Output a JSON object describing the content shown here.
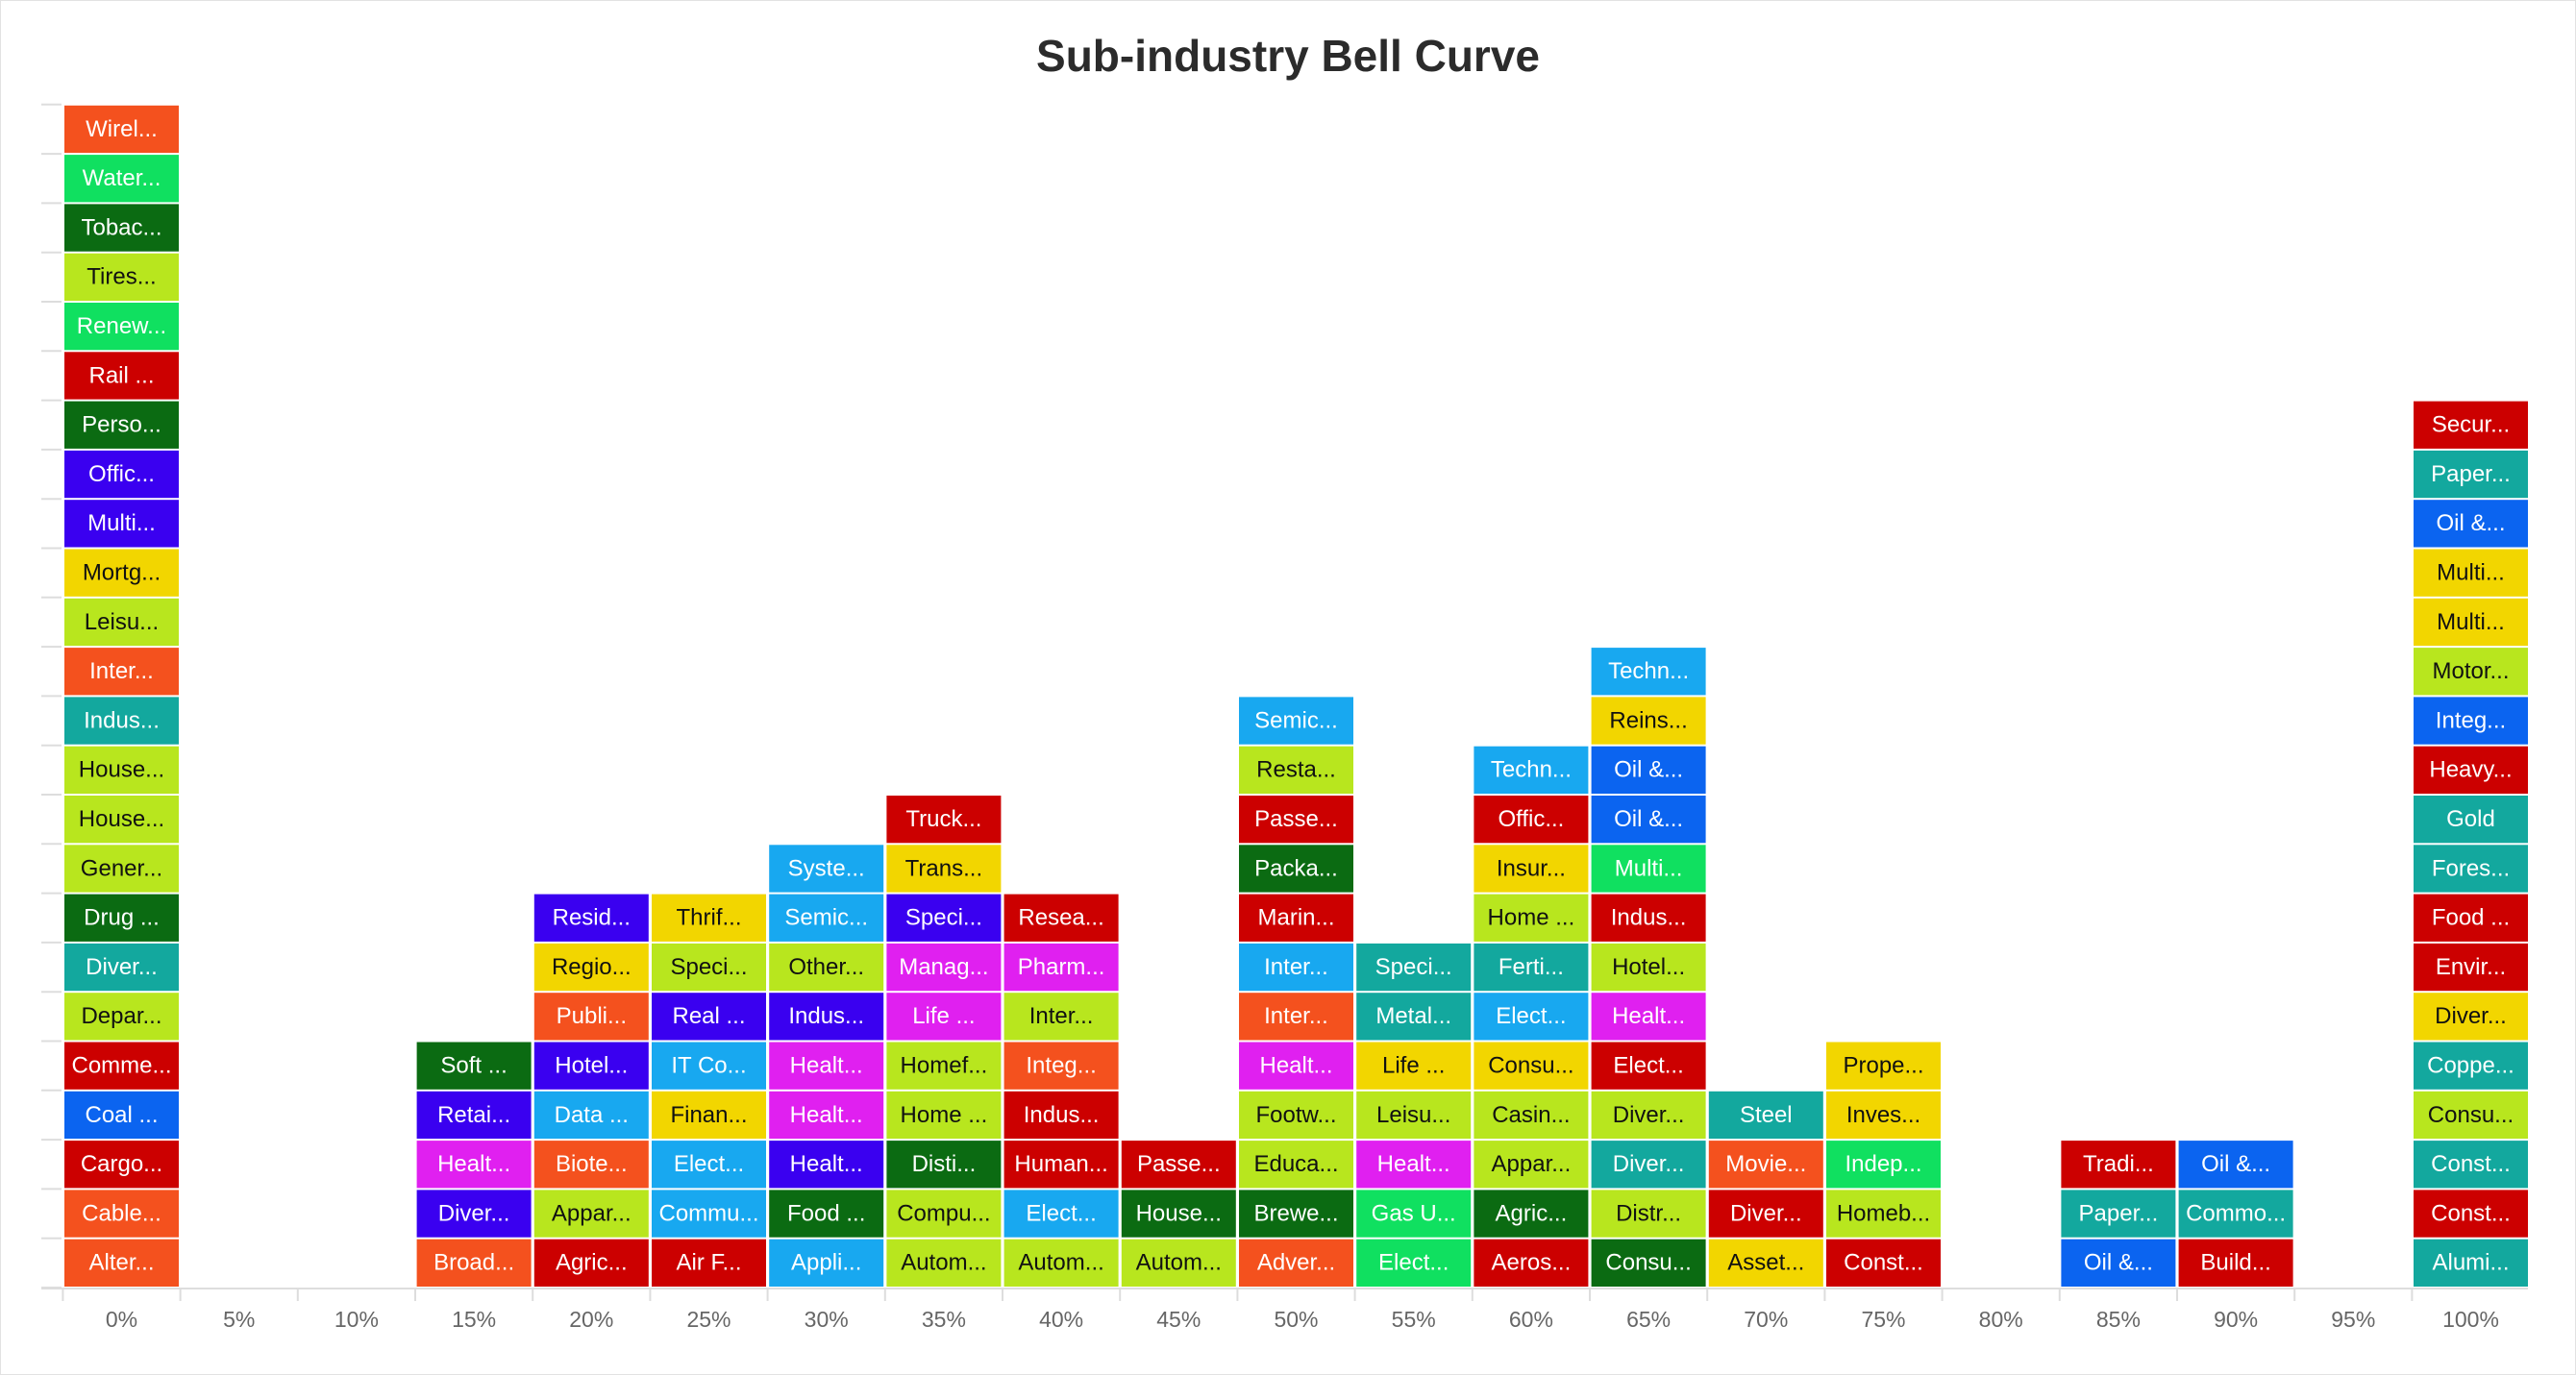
{
  "chart_data": {
    "type": "stacked-boxes",
    "title": "Sub-industry Bell Curve",
    "categories": [
      "0%",
      "5%",
      "10%",
      "15%",
      "20%",
      "25%",
      "30%",
      "35%",
      "40%",
      "45%",
      "50%",
      "55%",
      "60%",
      "65%",
      "70%",
      "75%",
      "80%",
      "85%",
      "90%",
      "95%",
      "100%"
    ],
    "stacks": [
      {
        "labels": [
          "Alter...",
          "Cable...",
          "Cargo...",
          "Coal ...",
          "Comme...",
          "Depar...",
          "Diver...",
          "Drug ...",
          "Gener...",
          "House...",
          "House...",
          "Indus...",
          "Inter...",
          "Leisu...",
          "Mortg...",
          "Multi...",
          "Offic...",
          "Perso...",
          "Rail ...",
          "Renew...",
          "Tires...",
          "Tobac...",
          "Water...",
          "Wirel..."
        ],
        "colors": [
          "#f4511e",
          "#f4511e",
          "#cc0000",
          "#0b64f0",
          "#cc0000",
          "#b8e61e",
          "#13a89e",
          "#0b6b12",
          "#b8e61e",
          "#b8e61e",
          "#b8e61e",
          "#13a89e",
          "#f4511e",
          "#b8e61e",
          "#f2d600",
          "#3a00f0",
          "#3a00f0",
          "#0b6b12",
          "#cc0000",
          "#10e060",
          "#b8e61e",
          "#0b6b12",
          "#10e060",
          "#f4511e"
        ]
      },
      {
        "labels": [],
        "colors": []
      },
      {
        "labels": [],
        "colors": []
      },
      {
        "labels": [
          "Broad...",
          "Diver...",
          "Healt...",
          "Retai...",
          "Soft ..."
        ],
        "colors": [
          "#f4511e",
          "#3a00f0",
          "#e020f0",
          "#3a00f0",
          "#0b6b12"
        ]
      },
      {
        "labels": [
          "Agric...",
          "Appar...",
          "Biote...",
          "Data ...",
          "Hotel...",
          "Publi...",
          "Regio...",
          "Resid..."
        ],
        "colors": [
          "#cc0000",
          "#b8e61e",
          "#f4511e",
          "#18a8f0",
          "#3a00f0",
          "#f4511e",
          "#f2d600",
          "#3a00f0"
        ]
      },
      {
        "labels": [
          "Air F...",
          "Commu...",
          "Elect...",
          "Finan...",
          "IT Co...",
          "Real ...",
          "Speci...",
          "Thrif..."
        ],
        "colors": [
          "#cc0000",
          "#18a8f0",
          "#18a8f0",
          "#f2d600",
          "#18a8f0",
          "#3a00f0",
          "#b8e61e",
          "#f2d600"
        ]
      },
      {
        "labels": [
          "Appli...",
          "Food ...",
          "Healt...",
          "Healt...",
          "Healt...",
          "Indus...",
          "Other...",
          "Semic...",
          "Syste..."
        ],
        "colors": [
          "#18a8f0",
          "#0b6b12",
          "#3a00f0",
          "#e020f0",
          "#e020f0",
          "#3a00f0",
          "#b8e61e",
          "#18a8f0",
          "#18a8f0"
        ]
      },
      {
        "labels": [
          "Autom...",
          "Compu...",
          "Disti...",
          "Home ...",
          "Homef...",
          "Life ...",
          "Manag...",
          "Speci...",
          "Trans...",
          "Truck..."
        ],
        "colors": [
          "#b8e61e",
          "#b8e61e",
          "#0b6b12",
          "#b8e61e",
          "#b8e61e",
          "#e020f0",
          "#e020f0",
          "#3a00f0",
          "#f2d600",
          "#cc0000"
        ]
      },
      {
        "labels": [
          "Autom...",
          "Elect...",
          "Human...",
          "Indus...",
          "Integ...",
          "Inter...",
          "Pharm...",
          "Resea..."
        ],
        "colors": [
          "#b8e61e",
          "#18a8f0",
          "#cc0000",
          "#cc0000",
          "#f4511e",
          "#b8e61e",
          "#e020f0",
          "#cc0000"
        ]
      },
      {
        "labels": [
          "Autom...",
          "House...",
          "Passe..."
        ],
        "colors": [
          "#b8e61e",
          "#0b6b12",
          "#cc0000"
        ]
      },
      {
        "labels": [
          "Adver...",
          "Brewe...",
          "Educa...",
          "Footw...",
          "Healt...",
          "Inter...",
          "Inter...",
          "Marin...",
          "Packa...",
          "Passe...",
          "Resta...",
          "Semic..."
        ],
        "colors": [
          "#f4511e",
          "#0b6b12",
          "#b8e61e",
          "#b8e61e",
          "#e020f0",
          "#f4511e",
          "#18a8f0",
          "#cc0000",
          "#0b6b12",
          "#cc0000",
          "#b8e61e",
          "#18a8f0"
        ]
      },
      {
        "labels": [
          "Elect...",
          "Gas U...",
          "Healt...",
          "Leisu...",
          "Life ...",
          "Metal...",
          "Speci..."
        ],
        "colors": [
          "#10e060",
          "#10e060",
          "#e020f0",
          "#b8e61e",
          "#f2d600",
          "#13a89e",
          "#13a89e"
        ]
      },
      {
        "labels": [
          "Aeros...",
          "Agric...",
          "Appar...",
          "Casin...",
          "Consu...",
          "Elect...",
          "Ferti...",
          "Home ...",
          "Insur...",
          "Offic...",
          "Techn..."
        ],
        "colors": [
          "#cc0000",
          "#0b6b12",
          "#b8e61e",
          "#b8e61e",
          "#f2d600",
          "#18a8f0",
          "#13a89e",
          "#b8e61e",
          "#f2d600",
          "#cc0000",
          "#18a8f0"
        ]
      },
      {
        "labels": [
          "Consu...",
          "Distr...",
          "Diver...",
          "Diver...",
          "Elect...",
          "Healt...",
          "Hotel...",
          "Indus...",
          "Multi...",
          "Oil &...",
          "Oil &...",
          "Reins...",
          "Techn..."
        ],
        "colors": [
          "#0b6b12",
          "#b8e61e",
          "#13a89e",
          "#b8e61e",
          "#cc0000",
          "#e020f0",
          "#b8e61e",
          "#cc0000",
          "#10e060",
          "#0b64f0",
          "#0b64f0",
          "#f2d600",
          "#18a8f0"
        ]
      },
      {
        "labels": [
          "Asset...",
          "Diver...",
          "Movie...",
          "Steel"
        ],
        "colors": [
          "#f2d600",
          "#cc0000",
          "#f4511e",
          "#13a89e"
        ]
      },
      {
        "labels": [
          "Const...",
          "Homeb...",
          "Indep...",
          "Inves...",
          "Prope..."
        ],
        "colors": [
          "#cc0000",
          "#b8e61e",
          "#10e060",
          "#f2d600",
          "#f2d600"
        ]
      },
      {
        "labels": [],
        "colors": []
      },
      {
        "labels": [
          "Oil &...",
          "Paper...",
          "Tradi..."
        ],
        "colors": [
          "#0b64f0",
          "#13a89e",
          "#cc0000"
        ]
      },
      {
        "labels": [
          "Build...",
          "Commo...",
          "Oil &..."
        ],
        "colors": [
          "#cc0000",
          "#13a89e",
          "#0b64f0"
        ]
      },
      {
        "labels": [],
        "colors": []
      },
      {
        "labels": [
          "Alumi...",
          "Const...",
          "Const...",
          "Consu...",
          "Coppe...",
          "Diver...",
          "Envir...",
          "Food ...",
          "Fores...",
          "Gold",
          "Heavy...",
          "Integ...",
          "Motor...",
          "Multi...",
          "Multi...",
          "Oil &...",
          "Paper...",
          "Secur..."
        ],
        "colors": [
          "#13a89e",
          "#cc0000",
          "#13a89e",
          "#b8e61e",
          "#13a89e",
          "#f2d600",
          "#cc0000",
          "#cc0000",
          "#13a89e",
          "#13a89e",
          "#cc0000",
          "#0b64f0",
          "#b8e61e",
          "#f2d600",
          "#f2d600",
          "#0b64f0",
          "#13a89e",
          "#cc0000"
        ]
      }
    ]
  }
}
